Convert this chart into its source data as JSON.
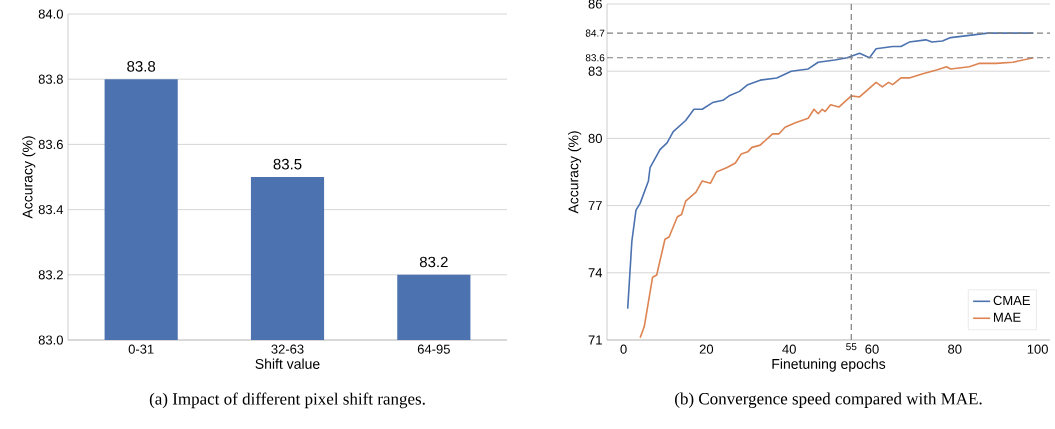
{
  "chart_data": [
    {
      "type": "bar",
      "xlabel": "Shift value",
      "ylabel": "Accuracy (%)",
      "categories": [
        "0-31",
        "32-63",
        "64-95"
      ],
      "values": [
        83.8,
        83.5,
        83.2
      ],
      "color": "#4c72b0",
      "data_labels": true,
      "ylim": [
        83.0,
        84.0
      ],
      "yticks": [
        {
          "value": 83.0,
          "label": "83.0"
        },
        {
          "value": 83.2,
          "label": "83.2"
        },
        {
          "value": 83.4,
          "label": "83.4"
        },
        {
          "value": 83.6,
          "label": "83.6"
        },
        {
          "value": 83.8,
          "label": "83.8"
        },
        {
          "value": 84.0,
          "label": "84.0"
        }
      ],
      "grid": "y",
      "legend": false,
      "annotations": [
        "(a) Impact of different pixel shift ranges."
      ]
    },
    {
      "type": "line",
      "xlabel": "Finetuning epochs",
      "ylabel": "Accuracy (%)",
      "xlim": [
        -4,
        103
      ],
      "ylim": [
        71,
        86
      ],
      "xticks": [
        0,
        20,
        40,
        60,
        80,
        100
      ],
      "yticks": [
        71,
        74,
        77,
        80,
        83,
        86
      ],
      "grid": "y",
      "legend": "bottom right",
      "line_style": "solid",
      "series": [
        {
          "name": "CMAE",
          "color": "#4c72b0",
          "x": [
            1,
            2,
            3,
            4,
            6,
            6.4,
            8.8,
            10.5,
            12,
            15,
            17,
            19,
            21.5,
            24,
            25.5,
            28,
            30,
            33,
            37,
            40.5,
            44.6,
            47,
            51,
            54,
            57,
            59.4,
            61,
            65,
            67,
            69,
            73,
            74.5,
            77,
            79,
            83.5,
            88,
            98,
            99
          ],
          "values": [
            72.4,
            75.4,
            76.8,
            77.1,
            78.1,
            78.7,
            79.5,
            79.8,
            80.3,
            80.8,
            81.3,
            81.3,
            81.6,
            81.7,
            81.9,
            82.1,
            82.4,
            82.6,
            82.7,
            83.0,
            83.1,
            83.4,
            83.5,
            83.6,
            83.8,
            83.6,
            84.0,
            84.1,
            84.1,
            84.3,
            84.4,
            84.3,
            84.35,
            84.5,
            84.6,
            84.7,
            84.7,
            84.7
          ]
        },
        {
          "name": "MAE",
          "color": "#dd8452",
          "x": [
            4,
            5,
            7,
            8,
            10,
            11,
            13,
            14,
            15,
            17.5,
            19,
            21,
            22.4,
            25,
            27,
            28.4,
            30,
            31,
            33,
            36,
            37.5,
            39,
            41.5,
            44.6,
            46,
            47,
            48,
            48.7,
            50,
            52,
            55,
            57,
            61,
            62.5,
            64,
            65,
            67,
            69,
            72.5,
            75.6,
            78,
            79,
            83.5,
            86,
            90,
            94,
            99
          ],
          "values": [
            71.1,
            71.6,
            73.8,
            73.9,
            75.5,
            75.6,
            76.5,
            76.6,
            77.2,
            77.6,
            78.1,
            78.0,
            78.5,
            78.7,
            78.9,
            79.3,
            79.4,
            79.6,
            79.7,
            80.2,
            80.2,
            80.5,
            80.7,
            80.9,
            81.3,
            81.1,
            81.3,
            81.2,
            81.5,
            81.4,
            81.9,
            81.85,
            82.5,
            82.3,
            82.5,
            82.4,
            82.7,
            82.7,
            82.9,
            83.05,
            83.2,
            83.1,
            83.2,
            83.35,
            83.35,
            83.4,
            83.6
          ]
        }
      ],
      "ref_lines": [
        {
          "axis": "y",
          "value": 84.7,
          "label": "84.7",
          "color": "#808080",
          "line_style": "dashed"
        },
        {
          "axis": "y",
          "value": 83.6,
          "label": "83.6",
          "color": "#808080",
          "line_style": "dashed"
        },
        {
          "axis": "x",
          "value": 55,
          "label": "55",
          "color": "#808080",
          "line_style": "dashed"
        }
      ],
      "annotations": [
        "(b) Convergence speed compared with MAE."
      ]
    }
  ]
}
